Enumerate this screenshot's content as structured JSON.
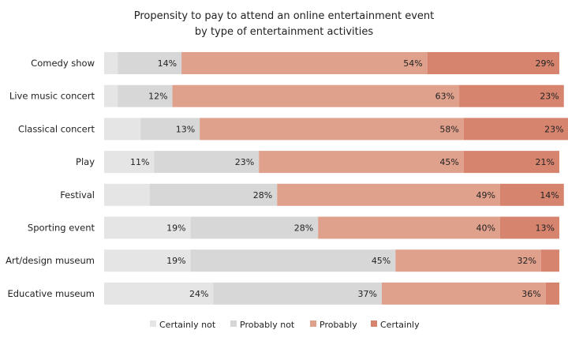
{
  "chart_data": {
    "type": "bar",
    "orientation": "horizontal",
    "stacked": true,
    "percent_stacked": true,
    "title_line1": "Propensity to pay to attend an online entertainment  event",
    "title_line2": "by type of entertainment  activities",
    "categories": [
      "Comedy show",
      "Live music concert",
      "Classical concert",
      "Play",
      "Festival",
      "Sporting event",
      "Art/design museum",
      "Educative museum"
    ],
    "series": [
      {
        "name": "Certainly not",
        "color": "#e5e5e5",
        "values": [
          3,
          3,
          8,
          11,
          10,
          19,
          19,
          24
        ],
        "labels": [
          "",
          "",
          "",
          "11%",
          "",
          "19%",
          "19%",
          "24%"
        ]
      },
      {
        "name": "Probably not",
        "color": "#d7d7d7",
        "values": [
          14,
          12,
          13,
          23,
          28,
          28,
          45,
          37
        ],
        "labels": [
          "14%",
          "12%",
          "13%",
          "23%",
          "28%",
          "28%",
          "45%",
          "37%"
        ]
      },
      {
        "name": "Probably",
        "color": "#e0a18c",
        "values": [
          54,
          63,
          58,
          45,
          49,
          40,
          32,
          36
        ],
        "labels": [
          "54%",
          "63%",
          "58%",
          "45%",
          "49%",
          "40%",
          "32%",
          "36%"
        ]
      },
      {
        "name": "Certainly",
        "color": "#d7846f",
        "values": [
          29,
          23,
          23,
          21,
          14,
          13,
          4,
          3
        ],
        "labels": [
          "29%",
          "23%",
          "23%",
          "21%",
          "14%",
          "13%",
          "",
          ""
        ]
      }
    ],
    "xlim": [
      0,
      100
    ],
    "legend_position": "bottom",
    "grid": false
  }
}
